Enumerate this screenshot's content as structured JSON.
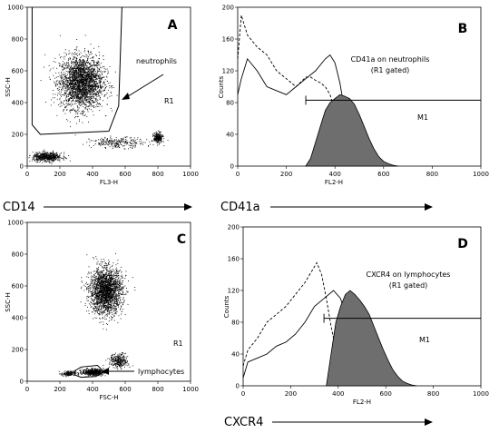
{
  "figure": {
    "marker_labels": [
      "CD14",
      "CD41a",
      "CXCR4"
    ]
  },
  "chart_data": [
    {
      "type": "scatter",
      "panel": "A",
      "xlabel": "FL3-H",
      "ylabel": "SSC-H",
      "xlim": [
        0,
        1000
      ],
      "ylim": [
        0,
        1000
      ],
      "xticks": [
        "0",
        "200",
        "400",
        "600",
        "800",
        "1000"
      ],
      "yticks": [
        "0",
        "200",
        "400",
        "600",
        "800",
        "1000"
      ],
      "populations": [
        {
          "center": [
            330,
            530
          ],
          "spread": [
            120,
            150
          ],
          "count": 2600
        },
        {
          "center": [
            120,
            60
          ],
          "spread": [
            80,
            25
          ],
          "count": 600
        },
        {
          "center": [
            800,
            180
          ],
          "spread": [
            25,
            30
          ],
          "count": 250
        },
        {
          "center": [
            550,
            150
          ],
          "spread": [
            150,
            30
          ],
          "count": 250
        }
      ],
      "gate": {
        "name": "R1",
        "points": [
          [
            30,
            1000
          ],
          [
            30,
            260
          ],
          [
            80,
            200
          ],
          [
            500,
            220
          ],
          [
            560,
            380
          ],
          [
            580,
            1000
          ]
        ]
      },
      "gate_label": "R1",
      "annotations": [
        "neutrophils"
      ]
    },
    {
      "type": "line",
      "panel": "B",
      "xlabel": "FL2-H",
      "ylabel": "Counts",
      "xlim": [
        0,
        1000
      ],
      "ylim": [
        0,
        200
      ],
      "xticks": [
        "0",
        "200",
        "400",
        "600",
        "800",
        "1000"
      ],
      "yticks": [
        "0",
        "40",
        "80",
        "120",
        "160",
        "200"
      ],
      "series": [
        {
          "style": "dashed",
          "x": [
            0,
            15,
            40,
            80,
            120,
            160,
            200,
            240,
            280,
            300,
            320,
            340,
            360,
            380,
            400,
            420,
            440,
            460,
            480,
            500
          ],
          "y": [
            135,
            190,
            165,
            150,
            140,
            120,
            110,
            100,
            112,
            112,
            108,
            105,
            100,
            90,
            70,
            40,
            20,
            8,
            2,
            0
          ]
        },
        {
          "style": "solid",
          "x": [
            0,
            15,
            40,
            80,
            120,
            160,
            200,
            240,
            280,
            320,
            360,
            380,
            400,
            420,
            440,
            460,
            480,
            500,
            520
          ],
          "y": [
            90,
            110,
            135,
            120,
            100,
            95,
            90,
            100,
            110,
            120,
            135,
            140,
            130,
            105,
            70,
            40,
            15,
            5,
            0
          ]
        },
        {
          "style": "filled",
          "x": [
            280,
            300,
            320,
            340,
            360,
            380,
            400,
            420,
            440,
            460,
            480,
            500,
            520,
            540,
            560,
            580,
            600,
            620,
            640,
            660
          ],
          "y": [
            0,
            10,
            30,
            50,
            70,
            80,
            85,
            90,
            88,
            85,
            78,
            65,
            50,
            35,
            22,
            12,
            6,
            3,
            1,
            0
          ]
        }
      ],
      "marker_gate": {
        "label": "M1",
        "range": [
          280,
          1000
        ],
        "y": 83
      },
      "annotations": [
        "CD41a on neutrophils",
        "(R1 gated)"
      ]
    },
    {
      "type": "scatter",
      "panel": "C",
      "xlabel": "FSC-H",
      "ylabel": "SSC-H",
      "xlim": [
        0,
        1000
      ],
      "ylim": [
        0,
        1000
      ],
      "xticks": [
        "0",
        "200",
        "400",
        "600",
        "800",
        "1000"
      ],
      "yticks": [
        "0",
        "200",
        "400",
        "600",
        "800",
        "1000"
      ],
      "populations": [
        {
          "center": [
            480,
            570
          ],
          "spread": [
            90,
            130
          ],
          "count": 2200
        },
        {
          "center": [
            400,
            60
          ],
          "spread": [
            60,
            18
          ],
          "count": 500
        },
        {
          "center": [
            560,
            130
          ],
          "spread": [
            50,
            40
          ],
          "count": 300
        },
        {
          "center": [
            250,
            50
          ],
          "spread": [
            40,
            15
          ],
          "count": 150
        }
      ],
      "gate": {
        "name": "R1",
        "points": [
          [
            290,
            40
          ],
          [
            330,
            25
          ],
          [
            420,
            30
          ],
          [
            470,
            60
          ],
          [
            430,
            100
          ],
          [
            330,
            90
          ],
          [
            290,
            65
          ]
        ]
      },
      "gate_label": "R1",
      "annotations": [
        "lymphocytes"
      ]
    },
    {
      "type": "line",
      "panel": "D",
      "xlabel": "FL2-H",
      "ylabel": "Counts",
      "xlim": [
        0,
        1000
      ],
      "ylim": [
        0,
        200
      ],
      "xticks": [
        "0",
        "200",
        "400",
        "600",
        "800",
        "1000"
      ],
      "yticks": [
        "0",
        "40",
        "80",
        "120",
        "160",
        "200"
      ],
      "series": [
        {
          "style": "dashed",
          "x": [
            0,
            20,
            60,
            100,
            140,
            180,
            220,
            260,
            290,
            310,
            330,
            350,
            370,
            390,
            410,
            430,
            450,
            470
          ],
          "y": [
            25,
            45,
            60,
            80,
            90,
            100,
            115,
            130,
            145,
            155,
            140,
            110,
            75,
            45,
            20,
            8,
            2,
            0
          ]
        },
        {
          "style": "solid",
          "x": [
            0,
            20,
            60,
            100,
            140,
            180,
            220,
            260,
            300,
            340,
            380,
            410,
            430,
            450,
            470,
            500,
            530
          ],
          "y": [
            10,
            30,
            35,
            40,
            50,
            55,
            65,
            80,
            100,
            110,
            120,
            110,
            90,
            60,
            30,
            8,
            0
          ]
        },
        {
          "style": "filled",
          "x": [
            350,
            370,
            390,
            410,
            430,
            450,
            470,
            490,
            510,
            530,
            550,
            570,
            590,
            610,
            630,
            650,
            670,
            690,
            710,
            730
          ],
          "y": [
            0,
            40,
            80,
            100,
            115,
            120,
            115,
            108,
            100,
            90,
            75,
            60,
            45,
            32,
            20,
            12,
            6,
            3,
            1,
            0
          ]
        }
      ],
      "marker_gate": {
        "label": "M1",
        "range": [
          340,
          1000
        ],
        "y": 85
      },
      "annotations": [
        "CXCR4 on lymphocytes",
        "(R1 gated)"
      ]
    }
  ]
}
